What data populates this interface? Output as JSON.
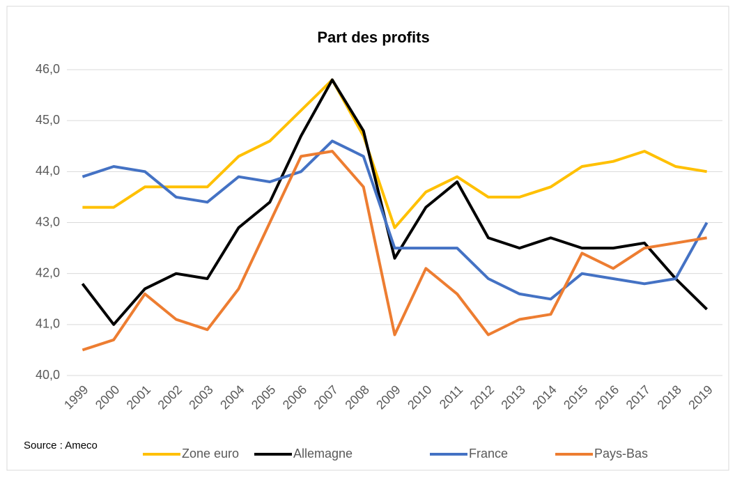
{
  "chart_data": {
    "type": "line",
    "title": "Part des profits",
    "source": "Source : Ameco",
    "categories": [
      "1999",
      "2000",
      "2001",
      "2002",
      "2003",
      "2004",
      "2005",
      "2006",
      "2007",
      "2008",
      "2009",
      "2010",
      "2011",
      "2012",
      "2013",
      "2014",
      "2015",
      "2016",
      "2017",
      "2018",
      "2019"
    ],
    "series": [
      {
        "name": "Zone euro",
        "color": "#ffc000",
        "values": [
          43.3,
          43.3,
          43.7,
          43.7,
          43.7,
          44.3,
          44.6,
          45.2,
          45.8,
          44.7,
          42.9,
          43.6,
          43.9,
          43.5,
          43.5,
          43.7,
          44.1,
          44.2,
          44.4,
          44.1,
          44.0
        ]
      },
      {
        "name": "Allemagne",
        "color": "#000000",
        "values": [
          41.8,
          41.0,
          41.7,
          42.0,
          41.9,
          42.9,
          43.4,
          44.7,
          45.8,
          44.8,
          42.3,
          43.3,
          43.8,
          42.7,
          42.5,
          42.7,
          42.5,
          42.5,
          42.6,
          41.9,
          41.3
        ]
      },
      {
        "name": "France",
        "color": "#4472c4",
        "values": [
          43.9,
          44.1,
          44.0,
          43.5,
          43.4,
          43.9,
          43.8,
          44.0,
          44.6,
          44.3,
          42.5,
          42.5,
          42.5,
          41.9,
          41.6,
          41.5,
          42.0,
          41.9,
          41.8,
          41.9,
          43.0
        ]
      },
      {
        "name": "Pays-Bas",
        "color": "#ed7d31",
        "values": [
          40.5,
          40.7,
          41.6,
          41.1,
          40.9,
          41.7,
          43.0,
          44.3,
          44.4,
          43.7,
          40.8,
          42.1,
          41.6,
          40.8,
          41.1,
          41.2,
          42.4,
          42.1,
          42.5,
          42.6,
          42.7
        ]
      }
    ],
    "ylim": [
      40,
      46
    ],
    "yticks": [
      {
        "value": 40,
        "label": "40,0"
      },
      {
        "value": 41,
        "label": "41,0"
      },
      {
        "value": 42,
        "label": "42,0"
      },
      {
        "value": 43,
        "label": "43,0"
      },
      {
        "value": 44,
        "label": "44,0"
      },
      {
        "value": 45,
        "label": "45,0"
      },
      {
        "value": 46,
        "label": "46,0"
      }
    ],
    "grid": true,
    "legend": "bottom"
  }
}
